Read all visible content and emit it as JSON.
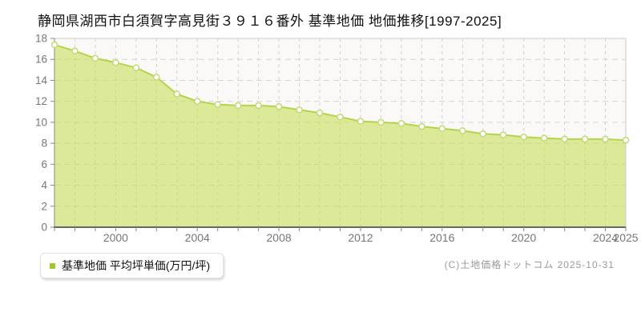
{
  "title": "静岡県湖西市白須賀字高見街３９１６番外 基準地価 地価推移[1997-2025]",
  "legend": {
    "label": "基準地価 平均坪単価(万円/坪)",
    "marker_color": "#a3c62c"
  },
  "copyright": "(C)土地価格ドットコム 2025-10-31",
  "chart_data": {
    "type": "area",
    "title": "静岡県湖西市白須賀字高見街３９１６番外 基準地価 地価推移[1997-2025]",
    "xlabel": "",
    "ylabel": "基準地価 平均坪単価(万円/坪)",
    "x": [
      1997,
      1998,
      1999,
      2000,
      2001,
      2002,
      2003,
      2004,
      2005,
      2006,
      2007,
      2008,
      2009,
      2010,
      2011,
      2012,
      2013,
      2014,
      2015,
      2016,
      2017,
      2018,
      2019,
      2020,
      2021,
      2022,
      2023,
      2024,
      2025
    ],
    "series": [
      {
        "name": "基準地価 平均坪単価(万円/坪)",
        "values": [
          17.4,
          16.8,
          16.1,
          15.7,
          15.2,
          14.3,
          12.7,
          12.0,
          11.7,
          11.6,
          11.6,
          11.5,
          11.2,
          10.9,
          10.5,
          10.1,
          10.0,
          9.9,
          9.6,
          9.4,
          9.2,
          8.9,
          8.8,
          8.6,
          8.5,
          8.4,
          8.4,
          8.4,
          8.3
        ]
      }
    ],
    "ylim": [
      0,
      18
    ],
    "yticks": [
      0,
      2,
      4,
      6,
      8,
      10,
      12,
      14,
      16,
      18
    ],
    "xticks_labeled": [
      2000,
      2004,
      2008,
      2012,
      2016,
      2020,
      2024,
      2025
    ],
    "grid": true,
    "legend_position": "bottom-left",
    "colors": {
      "area_fill": "#c6dd58",
      "area_opacity": 0.6,
      "line": "#b4d44c",
      "marker_fill": "#ffffff",
      "marker_stroke": "#c2db74",
      "grid_v": "#d4d4d4",
      "grid_h": "#d6d6d6",
      "plot_bg": "#faf9f7",
      "plot_border": "#cccccc",
      "axis": "#666666",
      "tick": "#888888",
      "label": "#777777"
    }
  }
}
